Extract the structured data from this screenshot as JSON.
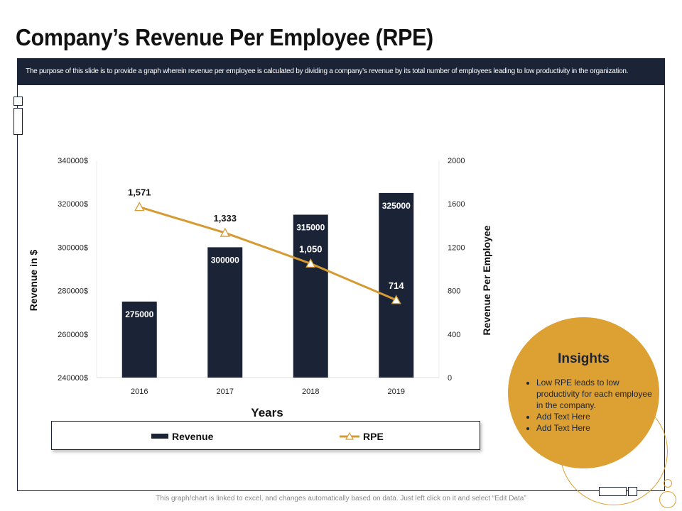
{
  "page": {
    "title": "Company’s Revenue Per Employee (RPE)",
    "description": "The purpose of this slide is to provide a graph wherein revenue per employee is calculated by dividing a company’s revenue by its total number of employees leading to low productivity in the organization.",
    "footer": "This graph/chart is linked to excel, and changes automatically based on data. Just left click on it and select “Edit Data”"
  },
  "colors": {
    "navy": "#1b2437",
    "gold": "#dca033",
    "accent_line": "#d69a33"
  },
  "chart_data": {
    "type": "bar",
    "categories": [
      "2016",
      "2017",
      "2018",
      "2019"
    ],
    "series": [
      {
        "name": "Revenue",
        "type": "bar",
        "axis": "left",
        "values": [
          275000,
          300000,
          315000,
          325000
        ],
        "labels": [
          "275000",
          "300000",
          "315000",
          "325000"
        ]
      },
      {
        "name": "RPE",
        "type": "line",
        "marker": "triangle",
        "axis": "right",
        "values": [
          1571,
          1333,
          1050,
          714
        ],
        "labels": [
          "1,571",
          "1,333",
          "1,050",
          "714"
        ]
      }
    ],
    "xlabel": "Years",
    "ylabel": "Revenue in $",
    "y2label": "Revenue Per Employee",
    "ylim": [
      240000,
      340000
    ],
    "y2lim": [
      0,
      2000
    ],
    "yticks": [
      "240000$",
      "260000$",
      "280000$",
      "300000$",
      "320000$",
      "340000$"
    ],
    "y2ticks": [
      "0",
      "400",
      "800",
      "1200",
      "1600",
      "2000"
    ],
    "legend": [
      "Revenue",
      "RPE"
    ],
    "legend_position": "bottom"
  },
  "insights": {
    "title": "Insights",
    "items": [
      "Low RPE leads to low productivity for each employee in the company.",
      "Add Text Here",
      "Add Text Here"
    ]
  }
}
